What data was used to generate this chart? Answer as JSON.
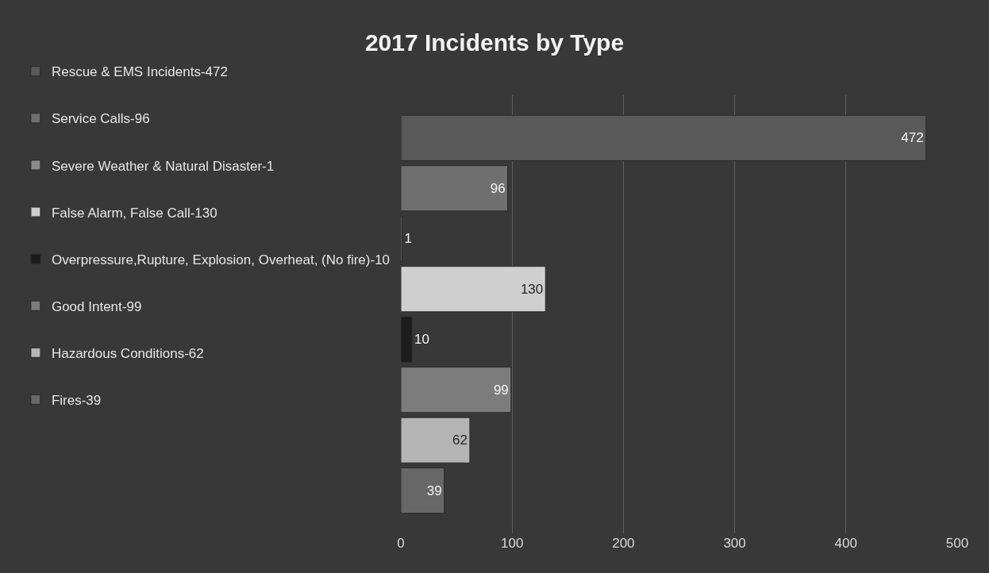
{
  "chart_data": {
    "type": "bar",
    "title": "2017 Incidents by Type",
    "orientation": "horizontal",
    "categories": [
      null
    ],
    "series": [
      {
        "name": "Rescue & EMS Incidents-472",
        "color": "#595959",
        "values": [
          472
        ]
      },
      {
        "name": "Service Calls-96",
        "color": "#6f6f6f",
        "values": [
          96
        ]
      },
      {
        "name": "Severe Weather & Natural Disaster-1",
        "color": "#8a8a8a",
        "values": [
          1
        ]
      },
      {
        "name": "False Alarm, False Call-130",
        "color": "#cfcfcf",
        "values": [
          130
        ]
      },
      {
        "name": "Overpressure,Rupture, Explosion, Overheat, (No fire)-10",
        "color": "#1c1c1c",
        "values": [
          10
        ]
      },
      {
        "name": "Good Intent-99",
        "color": "#7c7c7c",
        "values": [
          99
        ]
      },
      {
        "name": "Hazardous Conditions-62",
        "color": "#b4b4b4",
        "values": [
          62
        ]
      },
      {
        "name": "Fires-39",
        "color": "#676767",
        "values": [
          39
        ]
      }
    ],
    "xlim": [
      0,
      500
    ],
    "xticks": [
      0,
      100,
      200,
      300,
      400,
      500
    ],
    "grid": "x",
    "legend": "left",
    "data_labels": true
  }
}
